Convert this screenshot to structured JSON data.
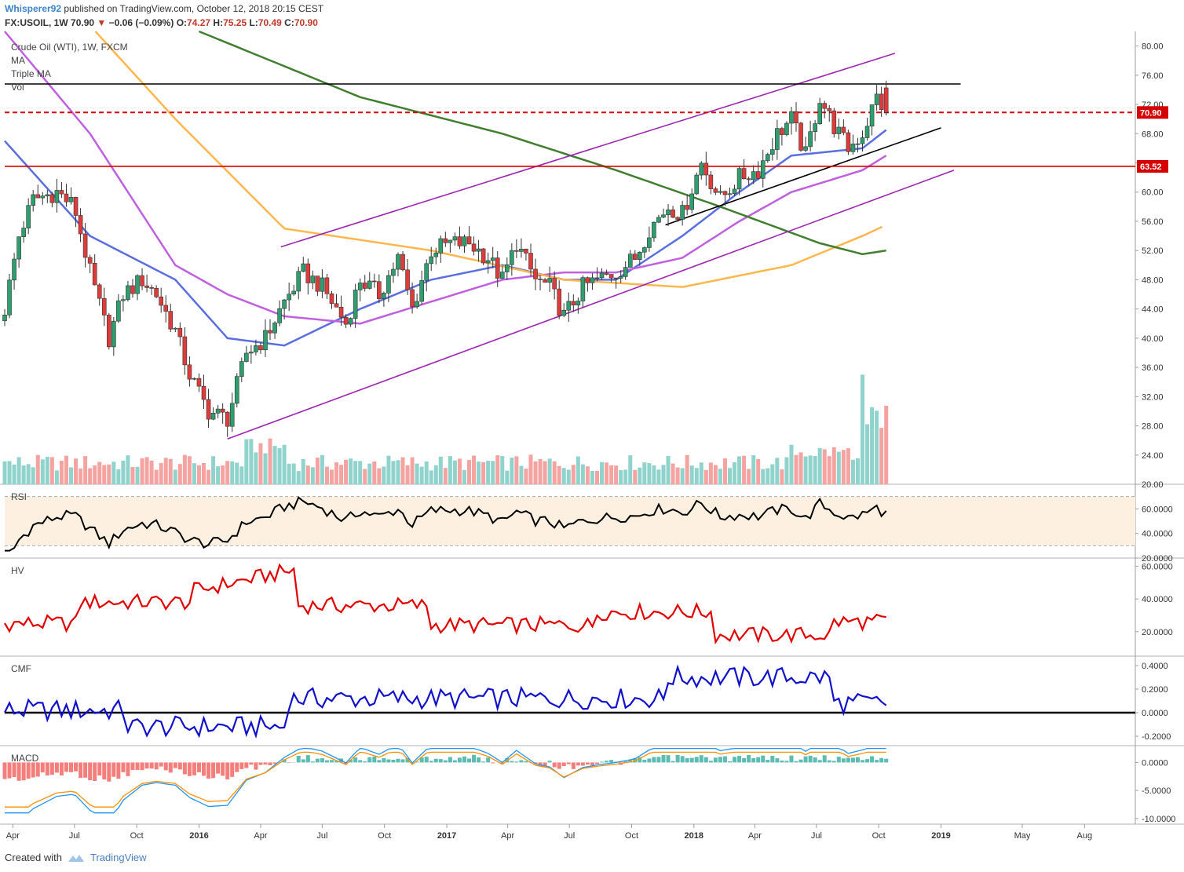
{
  "header": {
    "author": "Whisperer92",
    "published_text": "published on TradingView.com, October 12, 2018 20:15 CEST",
    "symbol": "FX:USOIL, 1W",
    "last": "70.90",
    "change": "−0.06 (−0.09%)",
    "open_label": "O:",
    "open": "74.27",
    "high_label": "H:",
    "high": "75.25",
    "low_label": "L:",
    "low": "70.49",
    "close_label": "C:",
    "close": "70.90"
  },
  "legend": {
    "title": "Crude Oil (WTI), 1W, FXCM",
    "items": [
      "MA",
      "Triple MA",
      "Vol"
    ]
  },
  "panes": {
    "rsi_label": "RSI",
    "hv_label": "HV",
    "cmf_label": "CMF",
    "macd_label": "MACD"
  },
  "price_tags": {
    "last": "70.90",
    "level": "63.52"
  },
  "footer": {
    "created_with": "Created with",
    "brand": "TradingView"
  },
  "colors": {
    "up": "#26a69a",
    "down": "#ef5350",
    "channel": "#9c27b0",
    "ma_blue": "#5b6ee1",
    "ma_violet": "#c060e0",
    "ma_orange": "#ffb74d",
    "ma_green": "#3f7f2f",
    "rsi": "#000000",
    "hv": "#e10000",
    "cmf": "#1111cc"
  },
  "chart_data": {
    "type": "candlestick",
    "title": "Crude Oil (WTI), 1W, FXCM",
    "y_ticks": [
      "80.00",
      "76.00",
      "72.00",
      "68.00",
      "64.00",
      "60.00",
      "56.00",
      "52.00",
      "48.00",
      "44.00",
      "40.00",
      "36.00",
      "32.00",
      "28.00",
      "24.00",
      "20.00"
    ],
    "ylim": [
      20,
      82
    ],
    "x_ticks": [
      "Apr",
      "Jul",
      "Oct",
      "2016",
      "Apr",
      "Jul",
      "Oct",
      "2017",
      "Apr",
      "Jul",
      "Oct",
      "2018",
      "Apr",
      "Jul",
      "Oct",
      "2019",
      "May",
      "Aug"
    ],
    "x_range": [
      "2015-03-20",
      "2019-10-15"
    ],
    "close_points": [
      [
        "2015-03-20",
        44
      ],
      [
        "2015-04-10",
        54
      ],
      [
        "2015-05-01",
        59
      ],
      [
        "2015-06-05",
        60
      ],
      [
        "2015-07-01",
        58
      ],
      [
        "2015-07-24",
        49
      ],
      [
        "2015-08-21",
        40
      ],
      [
        "2015-09-11",
        46
      ],
      [
        "2015-10-09",
        48
      ],
      [
        "2015-10-30",
        46
      ],
      [
        "2015-11-27",
        41
      ],
      [
        "2015-12-18",
        35
      ],
      [
        "2016-01-15",
        30
      ],
      [
        "2016-02-12",
        29
      ],
      [
        "2016-03-11",
        38
      ],
      [
        "2016-04-08",
        40
      ],
      [
        "2016-05-06",
        45
      ],
      [
        "2016-06-03",
        49
      ],
      [
        "2016-07-01",
        47
      ],
      [
        "2016-08-05",
        42
      ],
      [
        "2016-08-26",
        48
      ],
      [
        "2016-09-23",
        46
      ],
      [
        "2016-10-21",
        51
      ],
      [
        "2016-11-11",
        44
      ],
      [
        "2016-12-09",
        52
      ],
      [
        "2017-01-06",
        53
      ],
      [
        "2017-02-03",
        53
      ],
      [
        "2017-03-03",
        51
      ],
      [
        "2017-03-24",
        48
      ],
      [
        "2017-04-14",
        53
      ],
      [
        "2017-05-12",
        48
      ],
      [
        "2017-06-02",
        47
      ],
      [
        "2017-06-23",
        43
      ],
      [
        "2017-07-21",
        47
      ],
      [
        "2017-08-11",
        48
      ],
      [
        "2017-09-08",
        49
      ],
      [
        "2017-10-06",
        51
      ],
      [
        "2017-10-27",
        55
      ],
      [
        "2017-11-24",
        58
      ],
      [
        "2017-12-15",
        57
      ],
      [
        "2018-01-12",
        64
      ],
      [
        "2018-02-09",
        59
      ],
      [
        "2018-03-09",
        62
      ],
      [
        "2018-04-06",
        63
      ],
      [
        "2018-05-04",
        68
      ],
      [
        "2018-05-25",
        70
      ],
      [
        "2018-06-15",
        65
      ],
      [
        "2018-07-06",
        73
      ],
      [
        "2018-07-27",
        69
      ],
      [
        "2018-08-17",
        66
      ],
      [
        "2018-09-07",
        68
      ],
      [
        "2018-09-28",
        73
      ],
      [
        "2018-10-12",
        70.9
      ]
    ],
    "series": [
      {
        "name": "MA",
        "points": [
          [
            "2015-03-20",
            67
          ],
          [
            "2015-07-24",
            54
          ],
          [
            "2015-11-27",
            48
          ],
          [
            "2016-02-12",
            40
          ],
          [
            "2016-05-06",
            39
          ],
          [
            "2016-08-26",
            44
          ],
          [
            "2016-12-09",
            48
          ],
          [
            "2017-03-24",
            50
          ],
          [
            "2017-06-23",
            48
          ],
          [
            "2017-09-08",
            48
          ],
          [
            "2017-12-15",
            54
          ],
          [
            "2018-03-09",
            60
          ],
          [
            "2018-05-25",
            65
          ],
          [
            "2018-09-07",
            66
          ],
          [
            "2018-10-12",
            68.5
          ]
        ]
      },
      {
        "name": "Triple MA",
        "points": [
          [
            "2015-03-20",
            82
          ],
          [
            "2015-07-24",
            68
          ],
          [
            "2015-11-27",
            50
          ],
          [
            "2016-02-12",
            46
          ],
          [
            "2016-05-06",
            43
          ],
          [
            "2016-08-26",
            42
          ],
          [
            "2016-12-09",
            45
          ],
          [
            "2017-03-24",
            48
          ],
          [
            "2017-06-23",
            49
          ],
          [
            "2017-09-08",
            49
          ],
          [
            "2017-12-15",
            51
          ],
          [
            "2018-03-09",
            56
          ],
          [
            "2018-05-25",
            60
          ],
          [
            "2018-09-07",
            63
          ],
          [
            "2018-10-12",
            65
          ]
        ]
      },
      {
        "name": "",
        "points": [
          [
            "2015-08-01",
            82
          ],
          [
            "2015-11-27",
            70
          ],
          [
            "2016-05-06",
            55
          ],
          [
            "2016-12-09",
            52
          ],
          [
            "2017-06-23",
            48
          ],
          [
            "2017-12-15",
            47
          ],
          [
            "2018-05-25",
            50
          ],
          [
            "2018-09-07",
            54
          ],
          [
            "2018-10-12",
            55.5
          ]
        ]
      },
      {
        "name": "",
        "points": [
          [
            "2016-01-01",
            82
          ],
          [
            "2016-08-26",
            73
          ],
          [
            "2017-03-24",
            68
          ],
          [
            "2017-09-08",
            63
          ],
          [
            "2018-02-09",
            58
          ],
          [
            "2018-07-06",
            53
          ],
          [
            "2018-09-07",
            51.5
          ],
          [
            "2018-10-12",
            52
          ]
        ]
      }
    ],
    "horizontal_lines": [
      74.8,
      70.9,
      63.52
    ],
    "volume_max": 16000,
    "rsi": {
      "ylabels": [
        "60.0000",
        "40.0000",
        "20.0000"
      ],
      "ylim": [
        20,
        80
      ]
    },
    "hv": {
      "ylabels": [
        "60.0000",
        "40.0000",
        "20.0000"
      ],
      "ylim": [
        5,
        65
      ]
    },
    "cmf": {
      "ylabels": [
        "0.4000",
        "0.2000",
        "0.0000",
        "-0.2000"
      ],
      "ylim": [
        -0.28,
        0.48
      ]
    },
    "macd": {
      "ylabels": [
        "0.0000",
        "-5.0000",
        "-10.0000"
      ],
      "ylim": [
        -11,
        3
      ]
    }
  }
}
